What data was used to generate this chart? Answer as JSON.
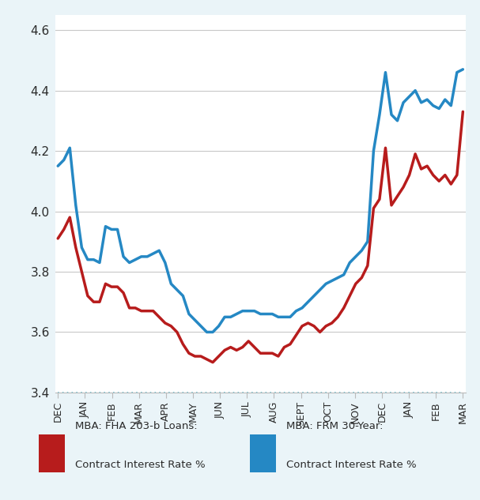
{
  "x_labels": [
    "DEC",
    "JAN",
    "FEB",
    "MAR",
    "APR",
    "MAY",
    "JUN",
    "JUL",
    "AUG",
    "SEPT",
    "OCT",
    "NOV",
    "DEC",
    "JAN",
    "FEB",
    "MAR"
  ],
  "fha_data": [
    3.91,
    3.94,
    3.98,
    3.88,
    3.8,
    3.72,
    3.7,
    3.7,
    3.76,
    3.75,
    3.75,
    3.73,
    3.68,
    3.68,
    3.67,
    3.67,
    3.67,
    3.65,
    3.63,
    3.62,
    3.6,
    3.56,
    3.53,
    3.52,
    3.52,
    3.51,
    3.5,
    3.52,
    3.54,
    3.55,
    3.54,
    3.55,
    3.57,
    3.55,
    3.53,
    3.53,
    3.53,
    3.52,
    3.55,
    3.56,
    3.59,
    3.62,
    3.63,
    3.62,
    3.6,
    3.62,
    3.63,
    3.65,
    3.68,
    3.72,
    3.76,
    3.78,
    3.82,
    4.01,
    4.04,
    4.21,
    4.02,
    4.05,
    4.08,
    4.12,
    4.19,
    4.14,
    4.15,
    4.12,
    4.1,
    4.12,
    4.09,
    4.12,
    4.33
  ],
  "frm_data": [
    4.15,
    4.17,
    4.21,
    4.02,
    3.88,
    3.84,
    3.84,
    3.83,
    3.95,
    3.94,
    3.94,
    3.85,
    3.83,
    3.84,
    3.85,
    3.85,
    3.86,
    3.87,
    3.83,
    3.76,
    3.74,
    3.72,
    3.66,
    3.64,
    3.62,
    3.6,
    3.6,
    3.62,
    3.65,
    3.65,
    3.66,
    3.67,
    3.67,
    3.67,
    3.66,
    3.66,
    3.66,
    3.65,
    3.65,
    3.65,
    3.67,
    3.68,
    3.7,
    3.72,
    3.74,
    3.76,
    3.77,
    3.78,
    3.79,
    3.83,
    3.85,
    3.87,
    3.9,
    4.2,
    4.32,
    4.46,
    4.32,
    4.3,
    4.36,
    4.38,
    4.4,
    4.36,
    4.37,
    4.35,
    4.34,
    4.37,
    4.35,
    4.46,
    4.47
  ],
  "fha_color": "#b71c1c",
  "frm_color": "#2588c4",
  "background_color": "#eaf4f8",
  "plot_bg_color": "#ffffff",
  "ylim": [
    3.4,
    4.65
  ],
  "yticks": [
    3.4,
    3.6,
    3.8,
    4.0,
    4.2,
    4.4,
    4.6
  ],
  "dashed_line_y": 3.4,
  "dashed_color": "#5bb8cc",
  "legend_fha_label1": "MBA: FHA 203-b Loans:",
  "legend_fha_label2": "Contract Interest Rate %",
  "legend_frm_label1": "MBA: FRM 30-Year:",
  "legend_frm_label2": "Contract Interest Rate %"
}
